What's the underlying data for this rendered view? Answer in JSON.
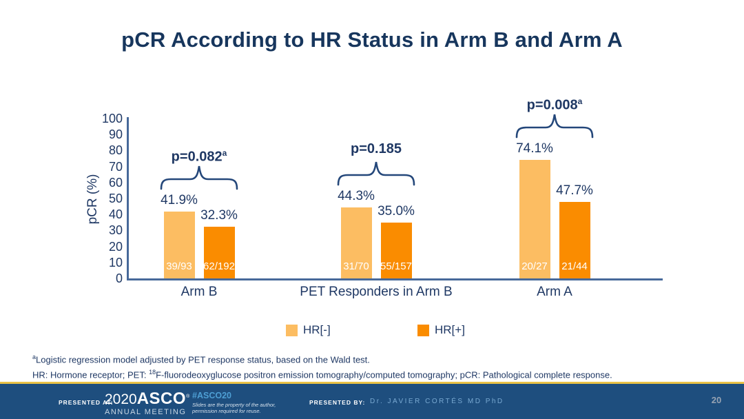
{
  "title": "pCR According to HR Status in Arm B and Arm A",
  "chart_data": {
    "type": "bar",
    "title": "pCR According to HR Status in Arm B and Arm A",
    "xlabel": "",
    "ylabel": "pCR (%)",
    "ylim": [
      0,
      100
    ],
    "yticks": [
      0,
      10,
      20,
      30,
      40,
      50,
      60,
      70,
      80,
      90,
      100
    ],
    "grid": false,
    "legend_position": "bottom",
    "categories": [
      "Arm B",
      "PET Responders in Arm B",
      "Arm A"
    ],
    "series": [
      {
        "name": "HR[-]",
        "color": "#FCBD62",
        "values": [
          41.9,
          44.3,
          74.1
        ],
        "fractions": [
          "39/93",
          "31/70",
          "20/27"
        ]
      },
      {
        "name": "HR[+]",
        "color": "#FA8C00",
        "values": [
          32.3,
          35.0,
          47.7
        ],
        "fractions": [
          "62/192",
          "55/157",
          "21/44"
        ]
      }
    ],
    "value_suffix": "%",
    "p_values": [
      {
        "text": "p=0.082",
        "sup": "a"
      },
      {
        "text": "p=0.185",
        "sup": ""
      },
      {
        "text": "p=0.008",
        "sup": "a"
      }
    ]
  },
  "legend": {
    "items": [
      {
        "label": "HR[-]",
        "color": "#FCBD62"
      },
      {
        "label": "HR[+]",
        "color": "#FA8C00"
      }
    ]
  },
  "footnotes": {
    "line1_sup": "a",
    "line1_text": "Logistic regression model adjusted by PET response status, based on the Wald test.",
    "line2_pre": "HR: Hormone receptor; PET: ",
    "line2_sup": "18",
    "line2_post": "F-fluorodeoxyglucose positron emission tomography/computed tomography; pCR: Pathological complete response."
  },
  "footer": {
    "presented_at_label": "PRESENTED AT:",
    "logo_year": "2020",
    "logo_name": "ASCO",
    "logo_reg": "®",
    "logo_sub": "ANNUAL MEETING",
    "hashtag": "#ASCO20",
    "disclaimer_line1": "Slides are the property of the author,",
    "disclaimer_line2": "permission required for reuse.",
    "presented_by_label": "PRESENTED BY:",
    "presenter": "Dr. JAVIER CORTÉS MD PhD",
    "page_number": "20"
  },
  "colors": {
    "title_navy": "#17365D",
    "text_navy": "#1F3864",
    "axis": "#47699A",
    "bar_light": "#FCBD62",
    "bar_dark": "#FA8C00",
    "footer_blue": "#1E4E7E",
    "footer_gold": "#E9C247",
    "hashtag_blue": "#4E9FD4",
    "presenter_blue": "#79A9D2",
    "page_gray": "#97A3B3"
  }
}
